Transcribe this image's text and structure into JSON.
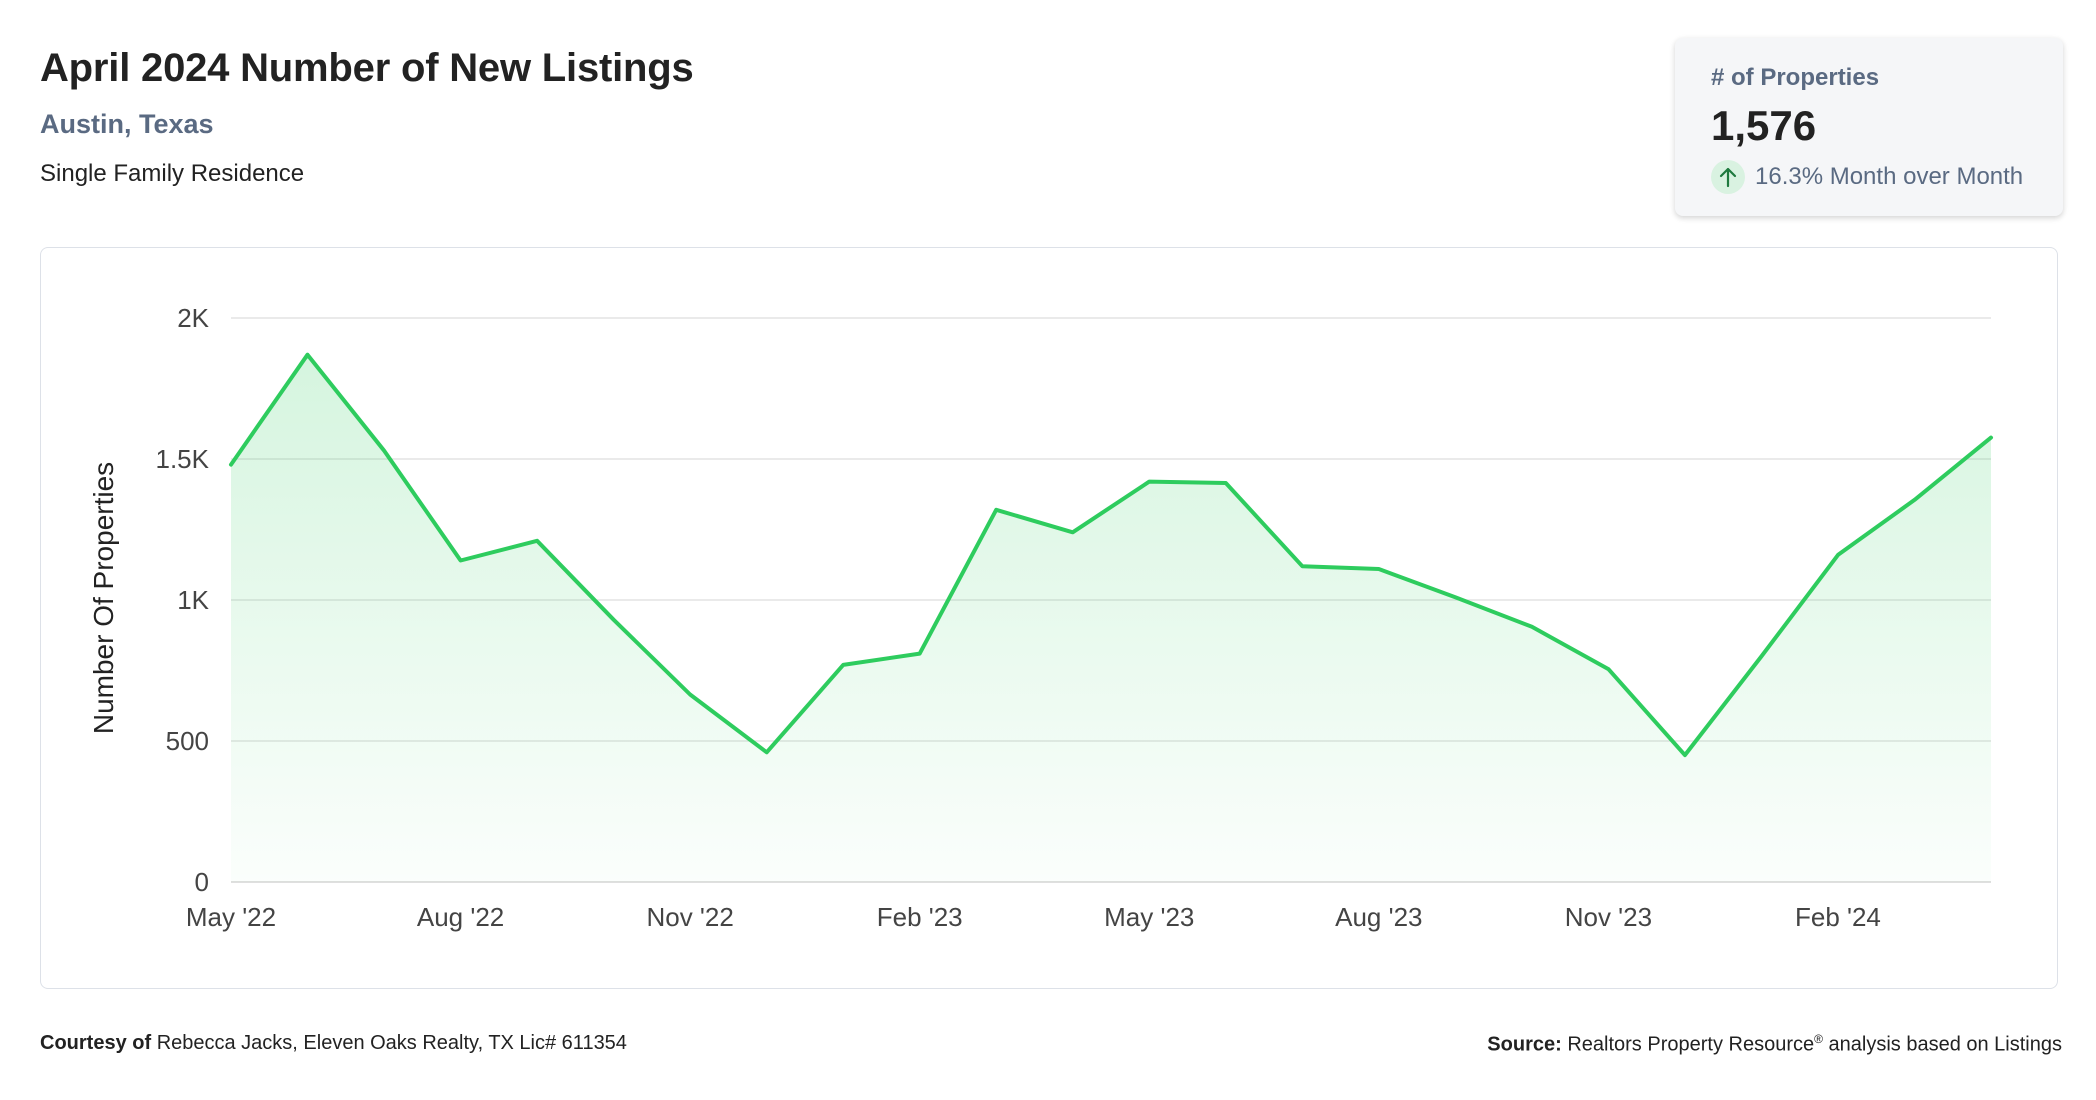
{
  "header": {
    "title": "April 2024 Number of New Listings",
    "location": "Austin, Texas",
    "property_type": "Single Family Residence"
  },
  "stat_card": {
    "label": "# of Properties",
    "value": "1,576",
    "change": "16.3% Month over Month",
    "direction": "up"
  },
  "footer": {
    "courtesy_label": "Courtesy of",
    "courtesy_text": "Rebecca Jacks, Eleven Oaks Realty, TX Lic# 611354",
    "source_label": "Source:",
    "source_name": "Realtors Property Resource",
    "source_mark": "®",
    "source_text": "analysis based on Listings"
  },
  "colors": {
    "line": "#2ecc5e",
    "fill": "#d9f5e1",
    "grid": "#dddddd",
    "accent_text": "#5a6a82"
  },
  "chart_data": {
    "type": "area",
    "ylabel": "Number Of Properties",
    "ylim": [
      0,
      2000
    ],
    "yticks": [
      0,
      500,
      1000,
      1500,
      2000
    ],
    "ytick_labels": [
      "0",
      "500",
      "1K",
      "1.5K",
      "2K"
    ],
    "x": [
      "May '22",
      "Jun '22",
      "Jul '22",
      "Aug '22",
      "Sep '22",
      "Oct '22",
      "Nov '22",
      "Dec '22",
      "Jan '23",
      "Feb '23",
      "Mar '23",
      "Apr '23",
      "May '23",
      "Jun '23",
      "Jul '23",
      "Aug '23",
      "Sep '23",
      "Oct '23",
      "Nov '23",
      "Dec '23",
      "Jan '24",
      "Feb '24",
      "Mar '24",
      "Apr '24"
    ],
    "xtick_labels": [
      "May '22",
      "Aug '22",
      "Nov '22",
      "Feb '23",
      "May '23",
      "Aug '23",
      "Nov '23",
      "Feb '24"
    ],
    "grid": true,
    "series": [
      {
        "values": [
          1480,
          1870,
          1530,
          1140,
          1210,
          930,
          665,
          460,
          770,
          810,
          1320,
          1240,
          1420,
          1415,
          1120,
          1110,
          1010,
          905,
          755,
          450,
          800,
          1160,
          1355,
          1576
        ]
      }
    ]
  }
}
